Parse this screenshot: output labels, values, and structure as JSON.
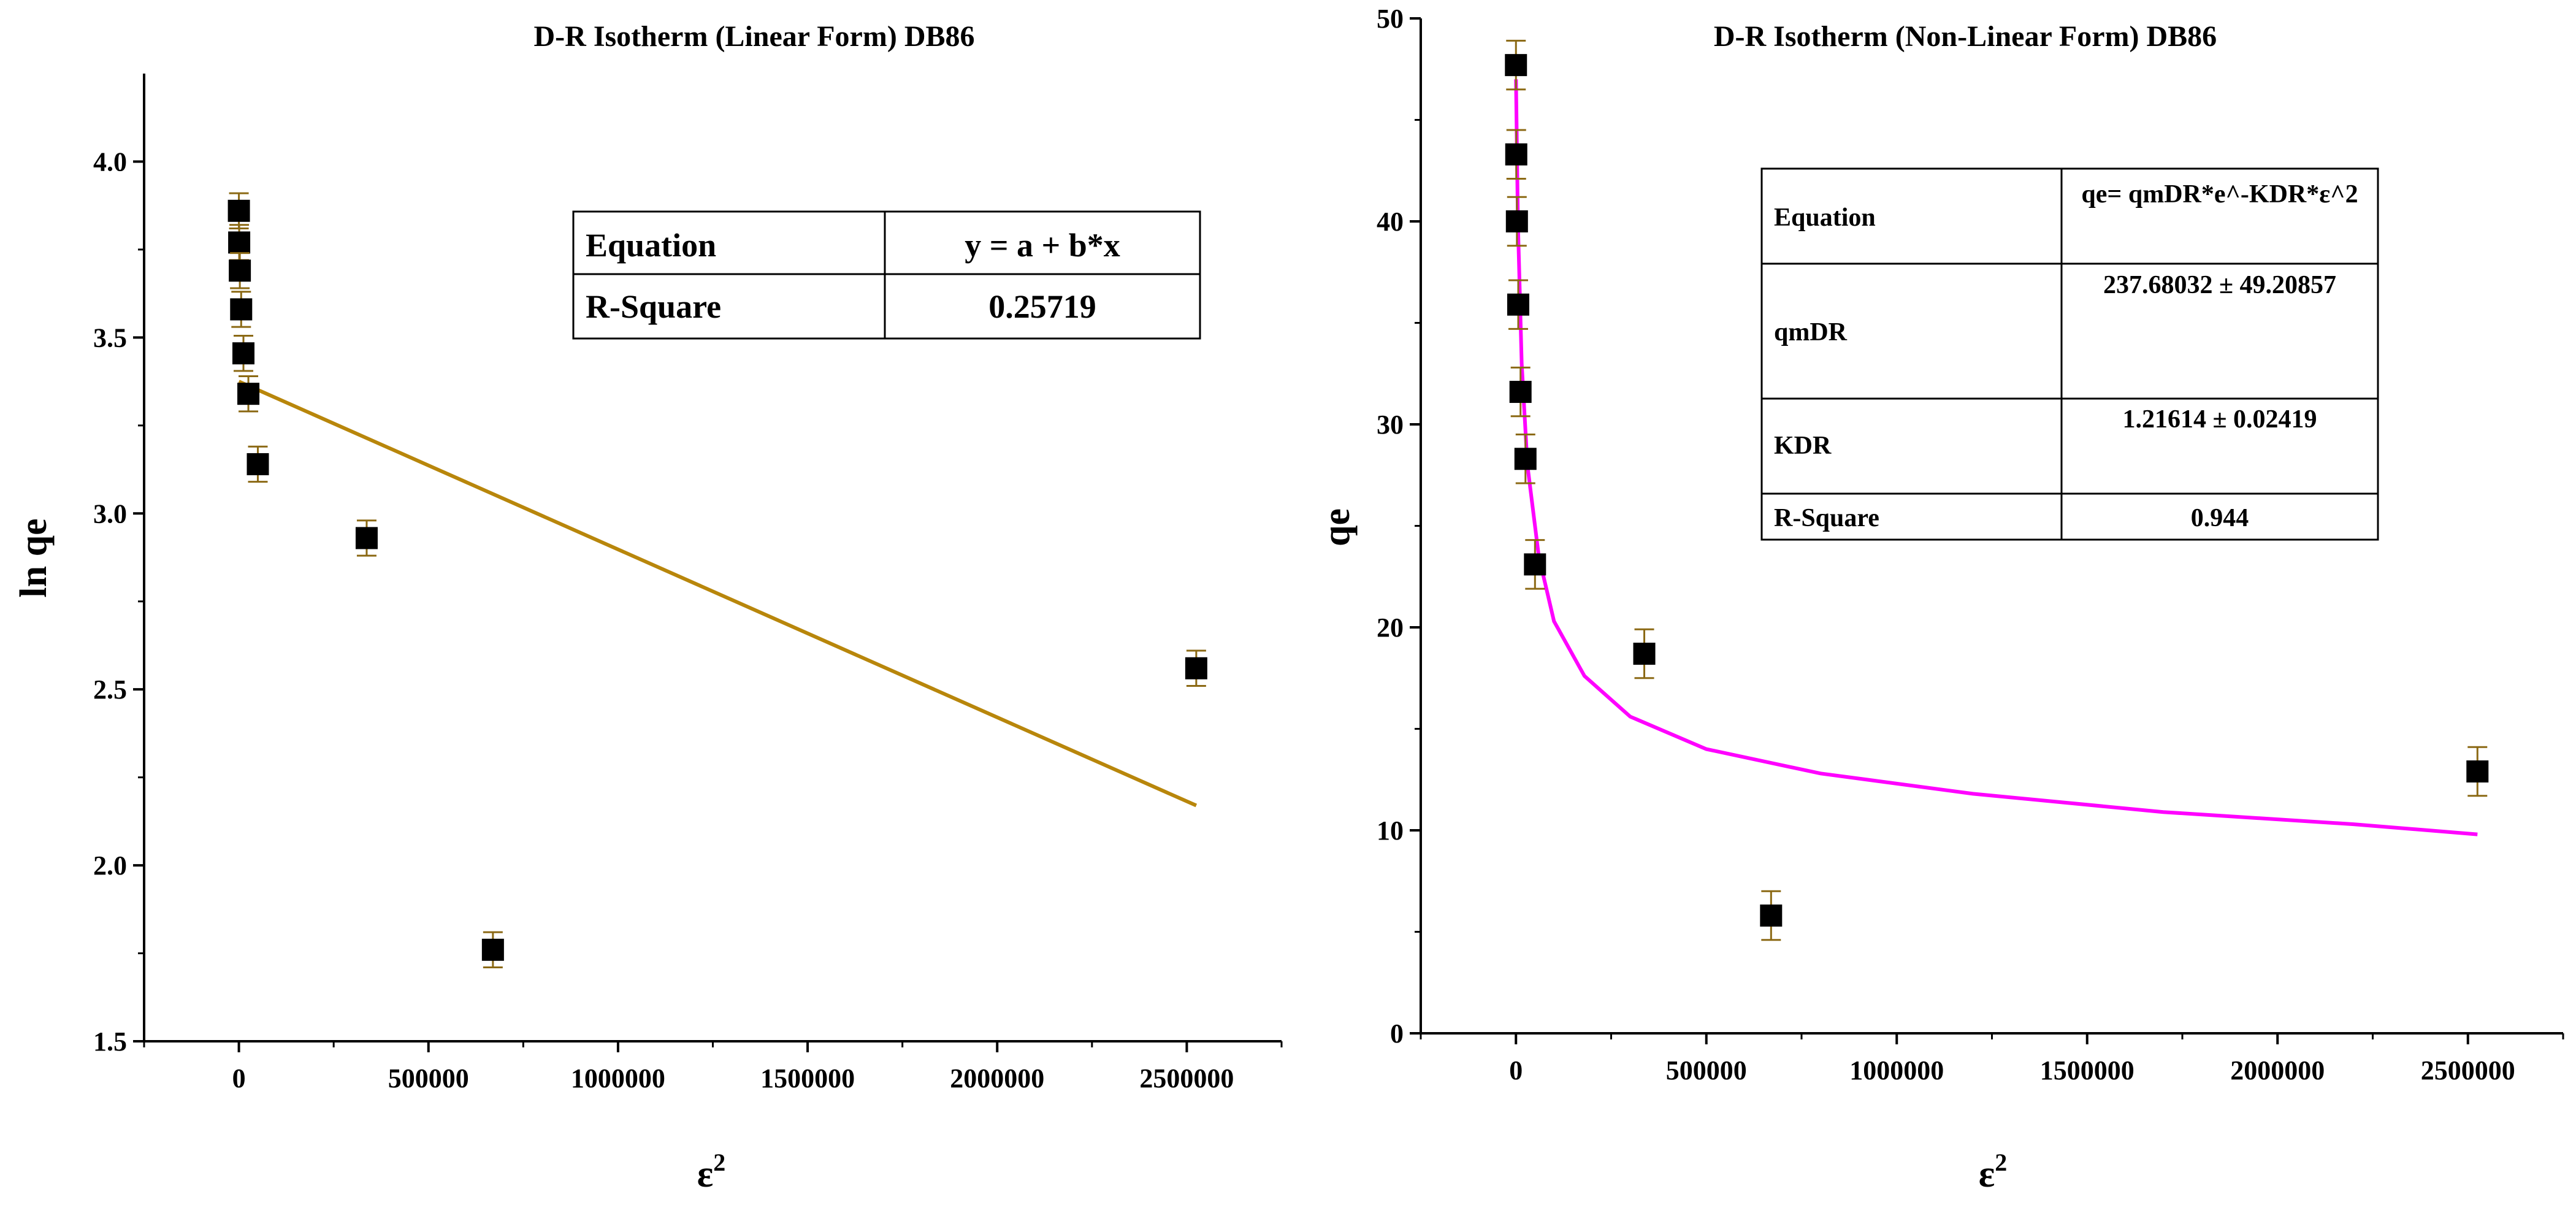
{
  "chart_data": [
    {
      "type": "scatter",
      "title": "D-R Isotherm (Linear Form) DB86",
      "xlabel": "ε",
      "xlabel_superscript": "2",
      "ylabel": "ln qe",
      "xlim": [
        -250000,
        2750000
      ],
      "ylim": [
        1.5,
        4.25
      ],
      "xticks": [
        0,
        500000,
        1000000,
        1500000,
        2000000,
        2500000
      ],
      "xtick_labels": [
        "0",
        "500000",
        "1000000",
        "1500000",
        "2000000",
        "2500000"
      ],
      "yticks": [
        1.5,
        2.0,
        2.5,
        3.0,
        3.5,
        4.0
      ],
      "ytick_labels": [
        "1.5",
        "2.0",
        "2.5",
        "3.0",
        "3.5",
        "4.0"
      ],
      "points": [
        {
          "x": 0,
          "y": 3.86,
          "err": 0.05
        },
        {
          "x": 800,
          "y": 3.77,
          "err": 0.05
        },
        {
          "x": 2500,
          "y": 3.69,
          "err": 0.05
        },
        {
          "x": 6000,
          "y": 3.58,
          "err": 0.05
        },
        {
          "x": 12000,
          "y": 3.455,
          "err": 0.05
        },
        {
          "x": 25000,
          "y": 3.34,
          "err": 0.05
        },
        {
          "x": 50000,
          "y": 3.14,
          "err": 0.05
        },
        {
          "x": 337000,
          "y": 2.93,
          "err": 0.05
        },
        {
          "x": 670000,
          "y": 1.76,
          "err": 0.05
        },
        {
          "x": 2525000,
          "y": 2.56,
          "err": 0.05
        }
      ],
      "fit": {
        "type": "line",
        "color": "#b8860b",
        "x0": 0,
        "y0": 3.375,
        "x1": 2525000,
        "y1": 2.17
      },
      "table": {
        "rows": [
          [
            "Equation",
            "y = a + b*x"
          ],
          [
            "R-Square",
            "0.25719"
          ]
        ]
      }
    },
    {
      "type": "scatter",
      "title": "D-R Isotherm (Non-Linear Form) DB86",
      "xlabel": "ε",
      "xlabel_superscript": "2",
      "ylabel": "qe",
      "xlim": [
        -250000,
        2750000
      ],
      "ylim": [
        0,
        50
      ],
      "xticks": [
        0,
        500000,
        1000000,
        1500000,
        2000000,
        2500000
      ],
      "xtick_labels": [
        "0",
        "500000",
        "1000000",
        "1500000",
        "2000000",
        "2500000"
      ],
      "yticks": [
        0,
        10,
        20,
        30,
        40,
        50
      ],
      "ytick_labels": [
        "0",
        "10",
        "20",
        "30",
        "40",
        "50"
      ],
      "points": [
        {
          "x": 0,
          "y": 47.7,
          "err": 1.2
        },
        {
          "x": 800,
          "y": 43.3,
          "err": 1.2
        },
        {
          "x": 2500,
          "y": 40.0,
          "err": 1.2
        },
        {
          "x": 6000,
          "y": 35.9,
          "err": 1.2
        },
        {
          "x": 12000,
          "y": 31.6,
          "err": 1.2
        },
        {
          "x": 25000,
          "y": 28.3,
          "err": 1.2
        },
        {
          "x": 50000,
          "y": 23.1,
          "err": 1.2
        },
        {
          "x": 337000,
          "y": 18.7,
          "err": 1.2
        },
        {
          "x": 670000,
          "y": 5.8,
          "err": 1.2
        },
        {
          "x": 2525000,
          "y": 12.9,
          "err": 1.2
        }
      ],
      "fit": {
        "type": "curve",
        "color": "#ff00ff",
        "x": [
          0,
          5000,
          15000,
          30000,
          60000,
          100000,
          180000,
          300000,
          500000,
          800000,
          1200000,
          1700000,
          2200000,
          2525000
        ],
        "y": [
          47.0,
          40.0,
          33.0,
          28.0,
          23.5,
          20.3,
          17.6,
          15.6,
          14.0,
          12.8,
          11.8,
          10.9,
          10.3,
          9.8
        ]
      },
      "table": {
        "rows": [
          [
            "Equation",
            "qe= qmDR*e^-KDR*ε^2"
          ],
          [
            "qmDR",
            "237.68032 ± 49.20857"
          ],
          [
            "KDR",
            "1.21614 ± 0.02419"
          ],
          [
            "R-Square",
            "0.944"
          ]
        ]
      }
    }
  ]
}
